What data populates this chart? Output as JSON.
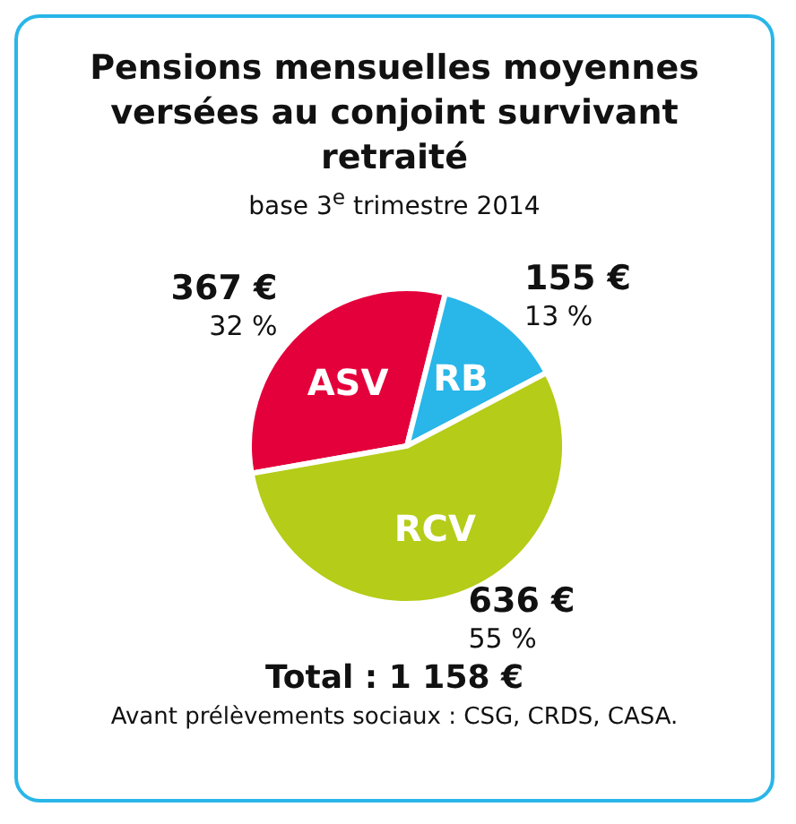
{
  "chart_data": {
    "type": "pie",
    "title": "Pensions mensuelles moyennes versées au conjoint survivant retraité",
    "subtitle": "base 3$^{e}$ trimestre 2014",
    "categories": [
      "ASV",
      "RB",
      "RCV"
    ],
    "values": [
      367,
      155,
      636
    ],
    "colors": [
      "#e4003b",
      "#29b6e8",
      "#b5cc18"
    ],
    "value_labels": [
      "367 €\n32 %",
      "155 €\n13 %",
      "636 €\n55 %"
    ],
    "annotations": [
      "Total : 1 158 €",
      "Avant prélèvements sociaux : CSG, CRDS, CASA."
    ]
  }
}
